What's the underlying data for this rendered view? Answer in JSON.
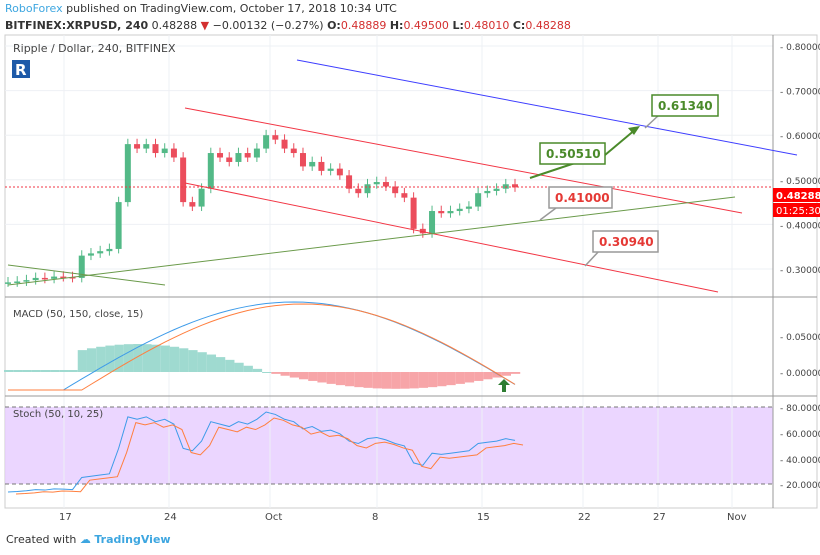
{
  "header": {
    "publisher": "RoboForex",
    "published": "published on TradingView.com, October 17, 2018 10:34 UTC",
    "symbol": "BITFINEX:XRPUSD, 240",
    "last": "0.48288",
    "change": "−0.00132 (−0.27%)",
    "o_label": "O:",
    "o": "0.48889",
    "h_label": "H:",
    "h": "0.49500",
    "l_label": "L:",
    "l": "0.48010",
    "c_label": "C:",
    "c": "0.48288"
  },
  "footer": {
    "created": "Created with",
    "brand": "TradingView"
  },
  "colors": {
    "up": "#53b987",
    "down": "#eb4d5c",
    "channel": "#f23645",
    "blue": "#3d3dff",
    "trend": "#6a9a4a",
    "stoch_bg": "#e1c6ff",
    "macd": "#3d9be9",
    "signal": "#ff7f3f"
  },
  "chart_data": {
    "type": "candlestick",
    "title": "Ripple / Dollar, 240, BITFINEX",
    "price_ticks": [
      "0.80000",
      "0.70000",
      "0.60000",
      "0.50000",
      "0.40000",
      "0.30000"
    ],
    "last_price": "0.48288",
    "countdown": "01:25:30",
    "x_ticks": [
      "17",
      "24",
      "Oct",
      "8",
      "15",
      "22",
      "27",
      "Nov"
    ],
    "closes": [
      0.27,
      0.272,
      0.275,
      0.28,
      0.278,
      0.283,
      0.282,
      0.28,
      0.33,
      0.335,
      0.34,
      0.345,
      0.45,
      0.58,
      0.57,
      0.58,
      0.56,
      0.57,
      0.55,
      0.45,
      0.44,
      0.48,
      0.56,
      0.55,
      0.54,
      0.56,
      0.55,
      0.57,
      0.6,
      0.59,
      0.57,
      0.56,
      0.53,
      0.54,
      0.52,
      0.525,
      0.51,
      0.48,
      0.47,
      0.49,
      0.495,
      0.485,
      0.47,
      0.46,
      0.39,
      0.38,
      0.43,
      0.425,
      0.43,
      0.435,
      0.44,
      0.47,
      0.475,
      0.48,
      0.49,
      0.483
    ],
    "annotations": [
      "0.61340",
      "0.50510",
      "0.41000",
      "0.30940"
    ],
    "macd": {
      "label": "MACD (50, 150, close, 15)",
      "ticks": [
        "0.050000",
        "0.000000"
      ]
    },
    "stoch": {
      "label": "Stoch (50, 10, 25)",
      "ticks": [
        "80.0000",
        "60.0000",
        "40.0000",
        "20.0000"
      ]
    }
  }
}
